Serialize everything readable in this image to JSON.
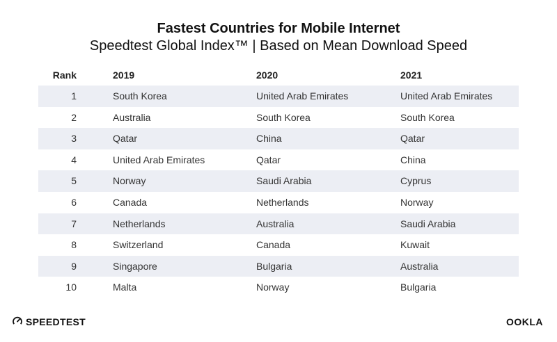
{
  "chart_data": {
    "type": "table",
    "title": "Fastest Countries for Mobile Internet",
    "subtitle": "Speedtest Global Index™ | Based on Mean Download Speed",
    "columns": [
      "Rank",
      "2019",
      "2020",
      "2021"
    ],
    "rows": [
      {
        "rank": "1",
        "y2019": "South Korea",
        "y2020": "United Arab Emirates",
        "y2021": "United Arab Emirates"
      },
      {
        "rank": "2",
        "y2019": "Australia",
        "y2020": "South Korea",
        "y2021": "South Korea"
      },
      {
        "rank": "3",
        "y2019": "Qatar",
        "y2020": "China",
        "y2021": "Qatar"
      },
      {
        "rank": "4",
        "y2019": "United Arab Emirates",
        "y2020": "Qatar",
        "y2021": "China"
      },
      {
        "rank": "5",
        "y2019": "Norway",
        "y2020": "Saudi Arabia",
        "y2021": "Cyprus"
      },
      {
        "rank": "6",
        "y2019": "Canada",
        "y2020": "Netherlands",
        "y2021": "Norway"
      },
      {
        "rank": "7",
        "y2019": "Netherlands",
        "y2020": "Australia",
        "y2021": "Saudi Arabia"
      },
      {
        "rank": "8",
        "y2019": "Switzerland",
        "y2020": "Canada",
        "y2021": "Kuwait"
      },
      {
        "rank": "9",
        "y2019": "Singapore",
        "y2020": "Bulgaria",
        "y2021": "Australia"
      },
      {
        "rank": "10",
        "y2019": "Malta",
        "y2020": "Norway",
        "y2021": "Bulgaria"
      }
    ],
    "row_shading": "alternating",
    "shade_color": "#eceef4"
  },
  "footer": {
    "left_brand": "SPEEDTEST",
    "left_icon": "speedometer-icon",
    "right_brand": "OOKLA"
  }
}
